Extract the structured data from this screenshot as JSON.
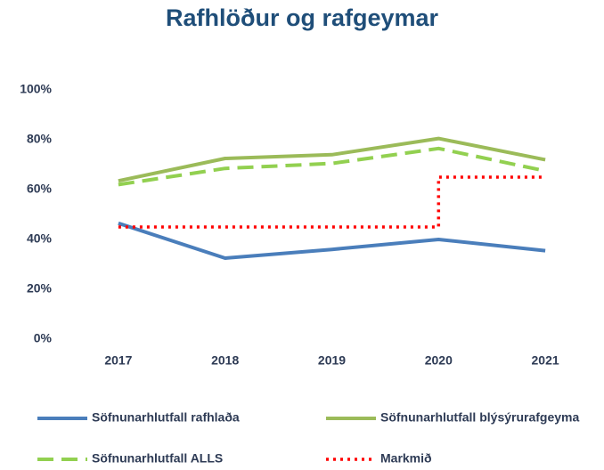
{
  "chart_data": {
    "type": "line",
    "title": "Rafhlöður og rafgeymar",
    "categories": [
      "2017",
      "2018",
      "2019",
      "2020",
      "2021"
    ],
    "series": [
      {
        "name": "Söfnunarhlutfall rafhlaða",
        "color": "#4a7ebb",
        "style": "solid",
        "values": [
          46.5,
          32.5,
          36,
          40,
          35.5
        ]
      },
      {
        "name": "Söfnunarhlutfall blýsýrurafgeyma",
        "color": "#9bbb59",
        "style": "solid",
        "values": [
          63.5,
          72.5,
          74,
          80.5,
          72
        ]
      },
      {
        "name": "Söfnunarhlutfall ALLS",
        "color": "#92d050",
        "style": "dashed",
        "values": [
          62,
          68.5,
          70.5,
          76.5,
          67.5
        ]
      },
      {
        "name": "Markmið",
        "color": "#ff0000",
        "style": "dotted",
        "step": "post",
        "values": [
          45,
          45,
          45,
          65,
          65
        ]
      }
    ],
    "ylim": [
      0,
      100
    ],
    "yticks": [
      {
        "value": 0,
        "label": "0%"
      },
      {
        "value": 20,
        "label": "20%"
      },
      {
        "value": 40,
        "label": "40%"
      },
      {
        "value": 60,
        "label": "60%"
      },
      {
        "value": 80,
        "label": "80%"
      },
      {
        "value": 100,
        "label": "100%"
      }
    ],
    "grid": false,
    "legend": "bottom"
  }
}
